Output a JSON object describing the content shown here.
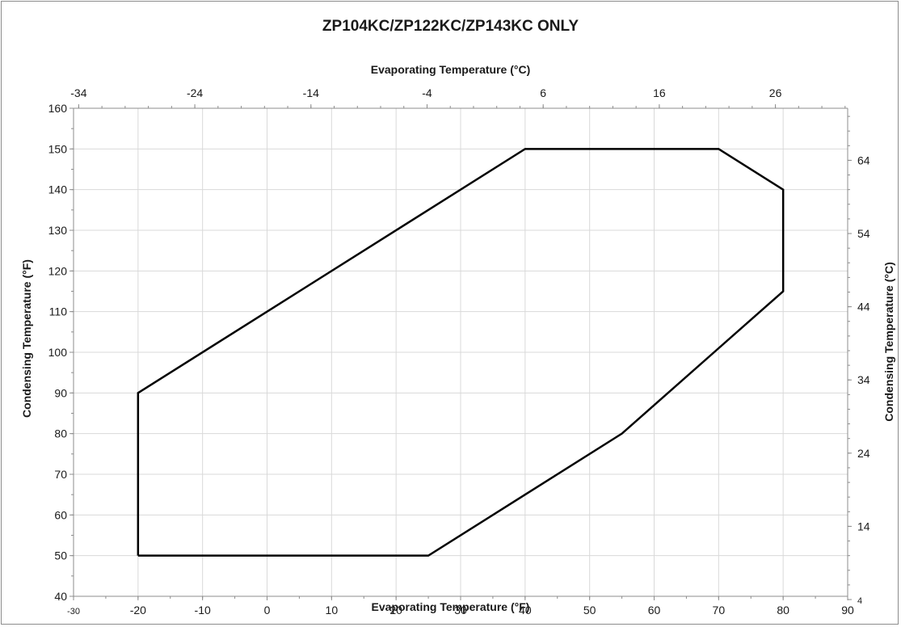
{
  "chart_data": {
    "type": "line",
    "title": "ZP104KC/ZP122KC/ZP143KC ONLY",
    "xlabel": "Evaporating Temperature (°F)",
    "ylabel": "Condensing Temperature (°F)",
    "x2label": "Evaporating Temperature (°C)",
    "y2label": "Condensing Temperature (°C)",
    "xlim": [
      -30,
      90
    ],
    "ylim": [
      40,
      160
    ],
    "xticks": [
      "-30",
      "-20",
      "-10",
      "0",
      "10",
      "20",
      "30",
      "40",
      "50",
      "60",
      "70",
      "80",
      "90"
    ],
    "yticks": [
      "40",
      "50",
      "60",
      "70",
      "80",
      "90",
      "100",
      "110",
      "120",
      "130",
      "140",
      "150",
      "160"
    ],
    "x2ticks": [
      "-34",
      "-24",
      "-14",
      "-4",
      "6",
      "16",
      "26"
    ],
    "y2ticks": [
      "4",
      "14",
      "24",
      "34",
      "44",
      "54",
      "64"
    ],
    "grid": true,
    "series": [
      {
        "color": "#000000",
        "x": [
          -20,
          -20,
          40,
          70,
          80,
          80,
          55,
          25,
          -20
        ],
        "y": [
          50,
          90,
          150,
          150,
          140,
          115,
          80,
          50,
          50
        ]
      }
    ]
  }
}
